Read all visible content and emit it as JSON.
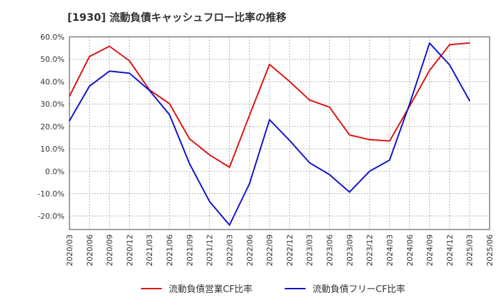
{
  "chart_data": {
    "type": "line",
    "title": "[1930]  流動負債キャッシュフロー比率の推移",
    "xlabel": "",
    "ylabel": "",
    "x": [
      "2020/03",
      "2020/06",
      "2020/09",
      "2020/12",
      "2021/03",
      "2021/06",
      "2021/09",
      "2021/12",
      "2022/03",
      "2022/06",
      "2022/09",
      "2022/12",
      "2023/03",
      "2023/06",
      "2023/09",
      "2023/12",
      "2024/03",
      "2024/06",
      "2024/09",
      "2024/12",
      "2025/03"
    ],
    "x_ticks": [
      "2020/03",
      "2020/06",
      "2020/09",
      "2020/12",
      "2021/03",
      "2021/06",
      "2021/09",
      "2021/12",
      "2022/03",
      "2022/06",
      "2022/09",
      "2022/12",
      "2023/03",
      "2023/06",
      "2023/09",
      "2023/12",
      "2024/03",
      "2024/06",
      "2024/09",
      "2024/12",
      "2025/03",
      "2025/06"
    ],
    "y_ticks": [
      "60.0%",
      "50.0%",
      "40.0%",
      "30.0%",
      "20.0%",
      "10.0%",
      "0.0%",
      "-10.0%",
      "-20.0%"
    ],
    "ylim": [
      -26,
      60
    ],
    "grid": true,
    "legend_position": "bottom",
    "series": [
      {
        "name": "流動負債営業CF比率",
        "color": "#dd1111",
        "values": [
          33.5,
          51.2,
          55.8,
          49.3,
          36.3,
          30.2,
          14.5,
          7.3,
          1.8,
          25.0,
          47.7,
          40.1,
          31.8,
          28.6,
          16.2,
          14.1,
          13.5,
          29.0,
          45.0,
          56.5,
          57.3
        ]
      },
      {
        "name": "流動負債フリーCF比率",
        "color": "#1111cc",
        "values": [
          22.5,
          38.0,
          44.7,
          43.8,
          36.1,
          25.3,
          3.4,
          -13.5,
          -24.0,
          -5.5,
          23.0,
          13.8,
          3.8,
          -1.5,
          -9.3,
          0.0,
          5.0,
          30.0,
          57.2,
          47.5,
          31.5
        ]
      }
    ]
  }
}
